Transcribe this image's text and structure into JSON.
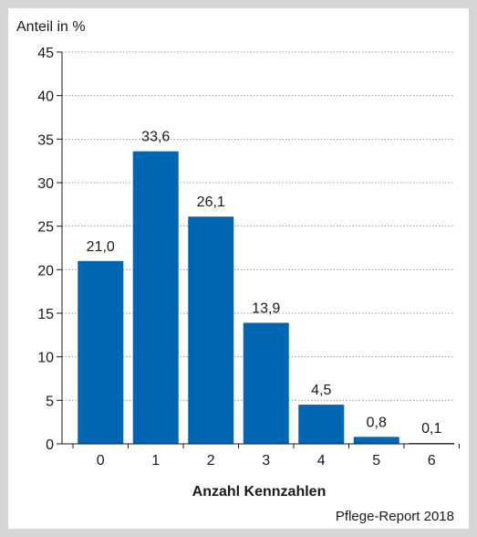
{
  "chart_data": {
    "type": "bar",
    "ylabel": "Anteil in %",
    "xlabel": "Anzahl Kennzahlen",
    "categories": [
      "0",
      "1",
      "2",
      "3",
      "4",
      "5",
      "6"
    ],
    "values": [
      21.0,
      33.6,
      26.1,
      13.9,
      4.5,
      0.8,
      0.1
    ],
    "value_labels": [
      "21,0",
      "33,6",
      "26,1",
      "13,9",
      "4,5",
      "0,8",
      "0,1"
    ],
    "yticks": [
      "0",
      "5",
      "10",
      "15",
      "20",
      "25",
      "30",
      "35",
      "40",
      "45"
    ],
    "ylim": [
      0,
      45
    ],
    "grid": true,
    "bar_color": "#0066b3",
    "grid_color": "#9a9a9a"
  },
  "source": "Pflege-Report 2018"
}
